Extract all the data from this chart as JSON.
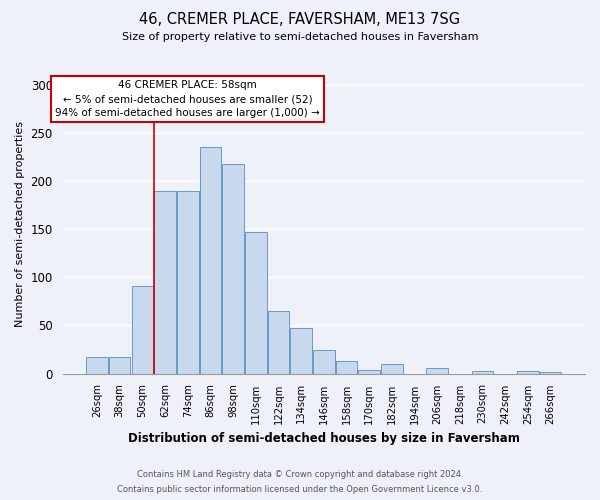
{
  "title": "46, CREMER PLACE, FAVERSHAM, ME13 7SG",
  "subtitle": "Size of property relative to semi-detached houses in Faversham",
  "xlabel": "Distribution of semi-detached houses by size in Faversham",
  "ylabel": "Number of semi-detached properties",
  "bar_labels": [
    "26sqm",
    "38sqm",
    "50sqm",
    "62sqm",
    "74sqm",
    "86sqm",
    "98sqm",
    "110sqm",
    "122sqm",
    "134sqm",
    "146sqm",
    "158sqm",
    "170sqm",
    "182sqm",
    "194sqm",
    "206sqm",
    "218sqm",
    "230sqm",
    "242sqm",
    "254sqm",
    "266sqm"
  ],
  "bar_values": [
    17,
    17,
    91,
    190,
    190,
    235,
    218,
    147,
    65,
    47,
    24,
    13,
    4,
    10,
    0,
    6,
    0,
    3,
    0,
    3,
    2
  ],
  "bar_color": "#c9d9ed",
  "bar_edge_color": "#6699cc",
  "vline_x": 2.5,
  "vline_color": "#cc0000",
  "ylim": [
    0,
    310
  ],
  "yticks": [
    0,
    50,
    100,
    150,
    200,
    250,
    300
  ],
  "annotation_title": "46 CREMER PLACE: 58sqm",
  "annotation_line1": "← 5% of semi-detached houses are smaller (52)",
  "annotation_line2": "94% of semi-detached houses are larger (1,000) →",
  "annotation_box_color": "#cc0000",
  "footer_line1": "Contains HM Land Registry data © Crown copyright and database right 2024.",
  "footer_line2": "Contains public sector information licensed under the Open Government Licence v3.0.",
  "background_color": "#eef2f8",
  "grid_color": "#ffffff"
}
